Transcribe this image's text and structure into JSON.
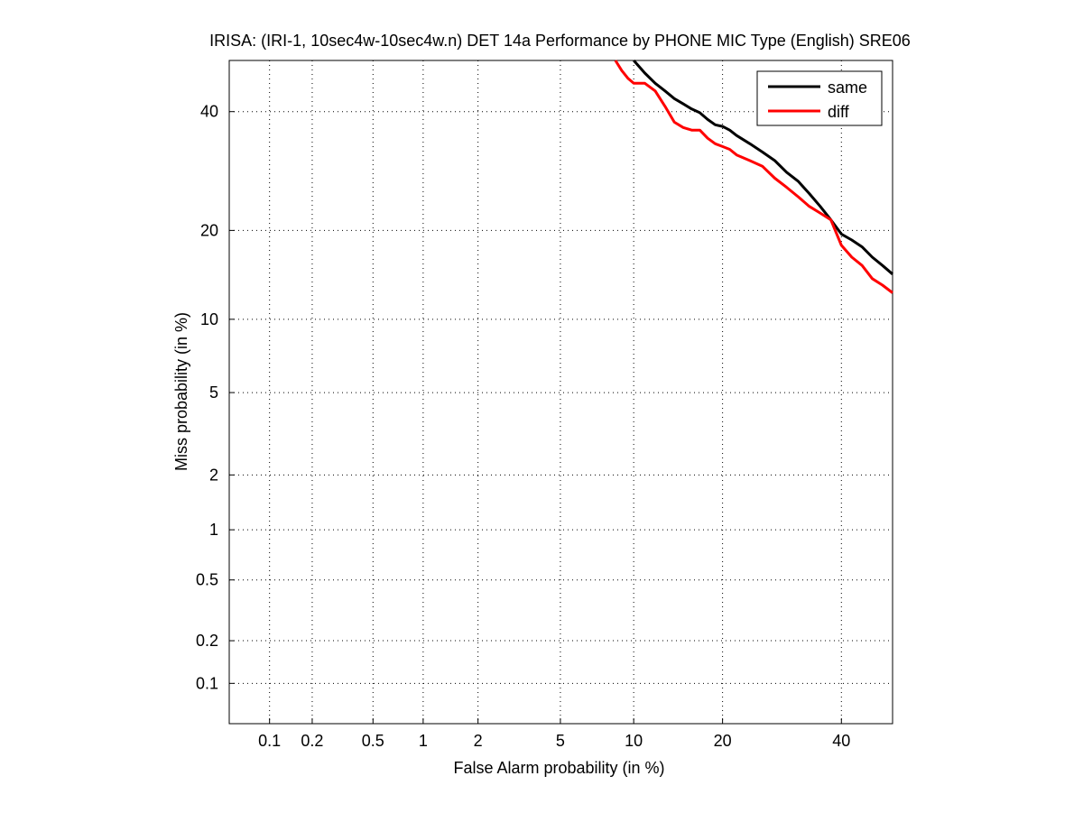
{
  "chart_data": {
    "type": "line",
    "title": "IRISA: (IRI-1, 10sec4w-10sec4w.n) DET 14a Performance by PHONE MIC Type (English) SRE06",
    "xlabel": "False Alarm probability (in %)",
    "ylabel": "Miss probability (in %)",
    "x_scale": "normal-deviate (probit)",
    "y_scale": "normal-deviate (probit)",
    "xlim": [
      0.05,
      50
    ],
    "ylim": [
      0.05,
      50
    ],
    "xticks": [
      0.1,
      0.2,
      0.5,
      1,
      2,
      5,
      10,
      20,
      40
    ],
    "xtick_labels": [
      "0.1",
      "0.2",
      "0.5",
      "1",
      "2",
      "5",
      "10",
      "20",
      "40"
    ],
    "yticks": [
      0.1,
      0.2,
      0.5,
      1,
      2,
      5,
      10,
      20,
      40
    ],
    "ytick_labels": [
      "0.1",
      "0.2",
      "0.5",
      "1",
      "2",
      "5",
      "10",
      "20",
      "40"
    ],
    "grid": true,
    "legend": "top-right",
    "series": [
      {
        "name": "same",
        "color": "#000000",
        "points": [
          [
            10,
            50
          ],
          [
            11,
            47.5
          ],
          [
            12,
            45.5
          ],
          [
            13,
            44
          ],
          [
            14,
            42.5
          ],
          [
            15,
            41.5
          ],
          [
            16,
            40.5
          ],
          [
            17,
            39.8
          ],
          [
            18,
            38.5
          ],
          [
            19,
            37.5
          ],
          [
            20,
            37.2
          ],
          [
            21,
            36.5
          ],
          [
            22,
            35.5
          ],
          [
            24,
            34
          ],
          [
            26,
            32.5
          ],
          [
            28,
            31
          ],
          [
            30,
            29
          ],
          [
            32,
            27.5
          ],
          [
            34,
            25.5
          ],
          [
            36,
            23.5
          ],
          [
            38,
            21.5
          ],
          [
            40,
            19.5
          ],
          [
            42,
            18.7
          ],
          [
            44,
            17.8
          ],
          [
            46,
            16.5
          ],
          [
            48,
            15.5
          ],
          [
            50,
            14.5
          ]
        ]
      },
      {
        "name": "diff",
        "color": "#ff0000",
        "points": [
          [
            8.5,
            50
          ],
          [
            9,
            48
          ],
          [
            9.5,
            46.5
          ],
          [
            10,
            45.5
          ],
          [
            11,
            45.5
          ],
          [
            12,
            44
          ],
          [
            13,
            41
          ],
          [
            14,
            38
          ],
          [
            15,
            37
          ],
          [
            16,
            36.5
          ],
          [
            17,
            36.5
          ],
          [
            18,
            35
          ],
          [
            19,
            34
          ],
          [
            20,
            33.5
          ],
          [
            21,
            33
          ],
          [
            22,
            32
          ],
          [
            24,
            31
          ],
          [
            26,
            30
          ],
          [
            28,
            28
          ],
          [
            30,
            26.5
          ],
          [
            32,
            25
          ],
          [
            34,
            23.5
          ],
          [
            36,
            22.5
          ],
          [
            38,
            21.5
          ],
          [
            40,
            18
          ],
          [
            42,
            16.5
          ],
          [
            44,
            15.5
          ],
          [
            46,
            14
          ],
          [
            48,
            13.3
          ],
          [
            50,
            12.5
          ]
        ]
      }
    ]
  }
}
